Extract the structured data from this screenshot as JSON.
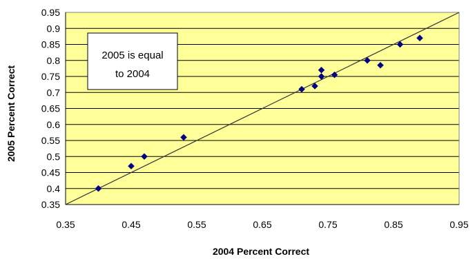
{
  "chart_data": {
    "type": "scatter",
    "xlabel": "2004 Percent Correct",
    "ylabel": "2005 Percent Correct",
    "xlim": [
      0.35,
      0.95
    ],
    "ylim": [
      0.35,
      0.95
    ],
    "x_ticks": [
      "0.35",
      "0.45",
      "0.55",
      "0.65",
      "0.75",
      "0.85",
      "0.95"
    ],
    "y_ticks": [
      "0.35",
      "0.4",
      "0.45",
      "0.5",
      "0.55",
      "0.6",
      "0.65",
      "0.7",
      "0.75",
      "0.8",
      "0.85",
      "0.9",
      "0.95"
    ],
    "grid": "horizontal",
    "plot_background": "#FFFF99",
    "marker_color": "#000080",
    "line_color": "#333333",
    "reference_line": {
      "from": [
        0.35,
        0.35
      ],
      "to": [
        0.95,
        0.95
      ]
    },
    "annotation": {
      "line1": "2005 is equal",
      "line2": "to 2004"
    },
    "points": [
      {
        "x": 0.4,
        "y": 0.4
      },
      {
        "x": 0.45,
        "y": 0.47
      },
      {
        "x": 0.47,
        "y": 0.5
      },
      {
        "x": 0.53,
        "y": 0.56
      },
      {
        "x": 0.71,
        "y": 0.71
      },
      {
        "x": 0.73,
        "y": 0.72
      },
      {
        "x": 0.74,
        "y": 0.77
      },
      {
        "x": 0.74,
        "y": 0.75
      },
      {
        "x": 0.76,
        "y": 0.755
      },
      {
        "x": 0.81,
        "y": 0.8
      },
      {
        "x": 0.83,
        "y": 0.785
      },
      {
        "x": 0.86,
        "y": 0.85
      },
      {
        "x": 0.89,
        "y": 0.87
      }
    ]
  }
}
